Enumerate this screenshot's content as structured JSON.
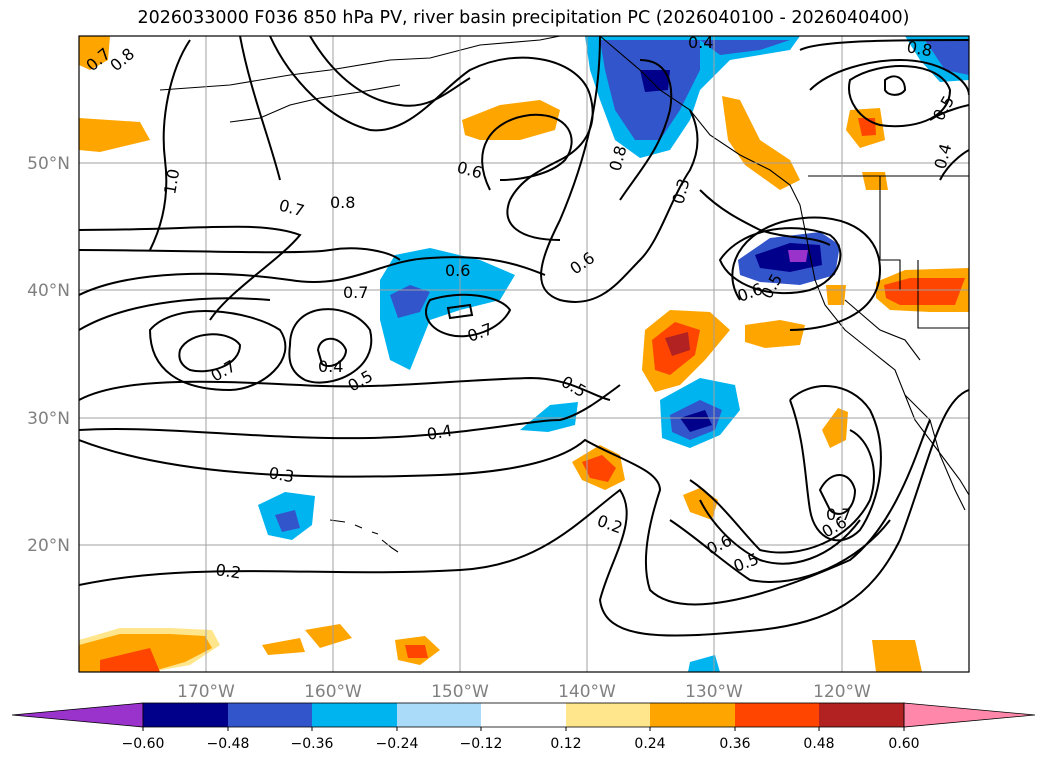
{
  "title": "2026033000 F036 850 hPa PV, river basin precipitation PC (2026040100 - 2026040400)",
  "map": {
    "lon_labels": [
      "170°W",
      "160°W",
      "150°W",
      "140°W",
      "130°W",
      "120°W"
    ],
    "lat_labels": [
      "50°N",
      "40°N",
      "30°N",
      "20°N"
    ],
    "gridline_color": "#a0a0a0",
    "coast_color": "#000000"
  },
  "contour_labels": [
    "0.7",
    "0.8",
    "0.8",
    "1.0",
    "0.7",
    "0.8",
    "0.6",
    "0.6",
    "0.7",
    "0.7",
    "0.4",
    "0.5",
    "0.7",
    "0.6",
    "0.8",
    "0.3",
    "0.4",
    "0.5",
    "0.6",
    "0.5",
    "0.4",
    "0.5",
    "0.4",
    "0.3",
    "0.2",
    "0.2",
    "0.6",
    "0.5",
    "0.7",
    "0.6"
  ],
  "colorbar": {
    "ticks": [
      "−0.60",
      "−0.48",
      "−0.36",
      "−0.24",
      "−0.12",
      "0.12",
      "0.24",
      "0.36",
      "0.48",
      "0.60"
    ],
    "colors": [
      "#9933cc",
      "#00008b",
      "#3355cc",
      "#00b4f0",
      "#aadcfa",
      "#ffffff",
      "#ffe68c",
      "#ffa500",
      "#ff4500",
      "#b22222",
      "#ff88aa"
    ]
  }
}
